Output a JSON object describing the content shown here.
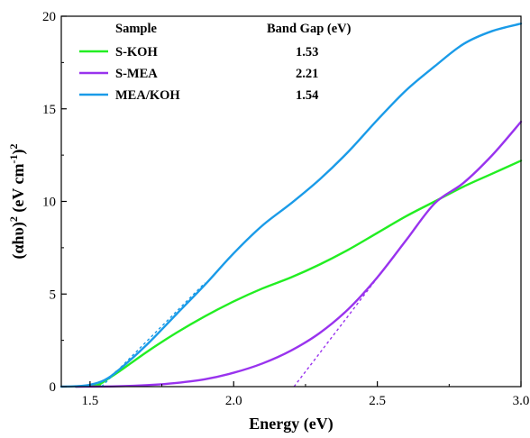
{
  "chart_data": {
    "type": "line",
    "xlabel": "Energy (eV)",
    "ylabel": "(αhυ)",
    "ylabel_sup1": "2",
    "ylabel_unit": " (eV cm",
    "ylabel_sup2": "-1",
    "ylabel_close": ")",
    "ylabel_sup3": "2",
    "xlim": [
      1.4,
      3.0
    ],
    "ylim": [
      0,
      20
    ],
    "xticks": [
      1.5,
      2.0,
      2.5,
      3.0
    ],
    "xtick_labels": [
      "1.5",
      "2.0",
      "2.5",
      "3.0"
    ],
    "yticks": [
      0,
      5,
      10,
      15,
      20
    ],
    "ytick_labels": [
      "0",
      "5",
      "10",
      "15",
      "20"
    ],
    "legend_headers": {
      "sample": "Sample",
      "bandgap": "Band Gap (eV)"
    },
    "series": [
      {
        "name": "S-KOH",
        "band_gap": "1.53",
        "color": "#22ee22",
        "x": [
          1.45,
          1.5,
          1.53,
          1.55,
          1.6,
          1.7,
          1.8,
          1.9,
          2.0,
          2.1,
          2.2,
          2.3,
          2.4,
          2.5,
          2.6,
          2.7,
          2.8,
          2.9,
          3.0
        ],
        "y": [
          0,
          0.02,
          0.1,
          0.3,
          0.8,
          1.9,
          2.9,
          3.8,
          4.6,
          5.3,
          5.9,
          6.6,
          7.4,
          8.3,
          9.2,
          10.0,
          10.8,
          11.5,
          12.2
        ],
        "tangent": {
          "x": [
            1.53,
            1.6
          ],
          "y": [
            0,
            0.95
          ]
        }
      },
      {
        "name": "S-MEA",
        "band_gap": "2.21",
        "color": "#9933ee",
        "x": [
          1.45,
          1.6,
          1.7,
          1.8,
          1.9,
          2.0,
          2.1,
          2.2,
          2.3,
          2.4,
          2.5,
          2.6,
          2.7,
          2.8,
          2.9,
          3.0
        ],
        "y": [
          0,
          0.02,
          0.08,
          0.2,
          0.4,
          0.75,
          1.25,
          1.95,
          2.9,
          4.2,
          5.9,
          7.9,
          9.9,
          11.0,
          12.5,
          14.3
        ],
        "tangent": {
          "x": [
            2.21,
            2.6
          ],
          "y": [
            0,
            7.9
          ]
        }
      },
      {
        "name": "MEA/KOH",
        "band_gap": "1.54",
        "color": "#1a9be8",
        "x": [
          1.4,
          1.45,
          1.5,
          1.55,
          1.6,
          1.7,
          1.8,
          1.9,
          2.0,
          2.1,
          2.2,
          2.3,
          2.4,
          2.5,
          2.6,
          2.7,
          2.8,
          2.9,
          3.0
        ],
        "y": [
          0,
          0.02,
          0.1,
          0.35,
          0.9,
          2.3,
          3.9,
          5.5,
          7.2,
          8.7,
          9.9,
          11.2,
          12.7,
          14.4,
          16.0,
          17.3,
          18.5,
          19.2,
          19.6
        ],
        "tangent": {
          "x": [
            1.54,
            1.9
          ],
          "y": [
            0,
            5.6
          ]
        }
      }
    ],
    "grid": false,
    "legend_position": "top-left"
  }
}
